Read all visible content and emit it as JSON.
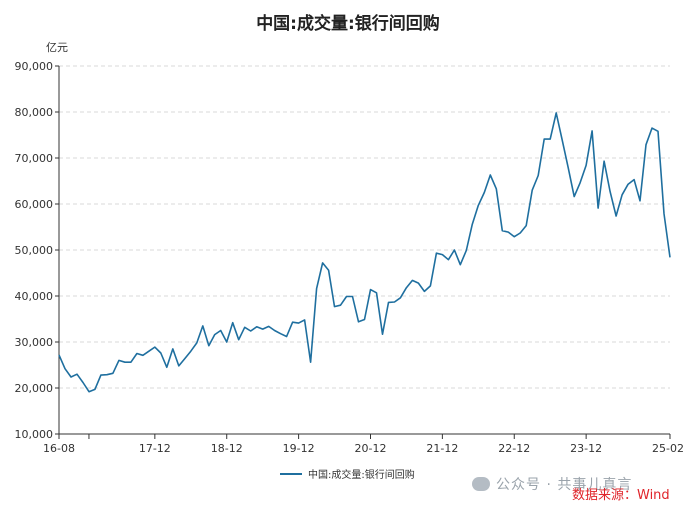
{
  "title": "中国:成交量:银行间回购",
  "watermark_text": "公众号 · 共事儿真言",
  "source_text": "数据来源：Wind",
  "icons": {
    "watermark": "wechat-icon"
  },
  "colors": {
    "series": "#1f6f9f",
    "grid": "#d9d9d9",
    "source_text": "#e0242a"
  },
  "chart_data": {
    "type": "line",
    "title": "中国:成交量:银行间回购",
    "ylabel": "亿元",
    "ylim": [
      10000,
      90000
    ],
    "yticks": [
      10000,
      20000,
      30000,
      40000,
      50000,
      60000,
      70000,
      80000,
      90000
    ],
    "ytick_labels": [
      "10,000",
      "20,000",
      "30,000",
      "40,000",
      "50,000",
      "60,000",
      "70,000",
      "80,000",
      "90,000"
    ],
    "xtick_labels": [
      "16-08",
      "17-12",
      "18-12",
      "19-12",
      "20-12",
      "21-12",
      "22-12",
      "23-12",
      "25-02"
    ],
    "xtick_dates": [
      "2016-08",
      "2017-12",
      "2018-12",
      "2019-12",
      "2020-12",
      "2021-12",
      "2022-12",
      "2023-12",
      "2025-02"
    ],
    "grid": "horizontal dashed",
    "legend_position": "bottom",
    "series": [
      {
        "name": "中国:成交量:银行间回购",
        "x": [
          "2016-08",
          "2016-09",
          "2016-10",
          "2016-11",
          "2016-12",
          "2017-01",
          "2017-02",
          "2017-03",
          "2017-04",
          "2017-05",
          "2017-06",
          "2017-07",
          "2017-08",
          "2017-09",
          "2017-10",
          "2017-11",
          "2017-12",
          "2018-01",
          "2018-02",
          "2018-03",
          "2018-04",
          "2018-05",
          "2018-06",
          "2018-07",
          "2018-08",
          "2018-09",
          "2018-10",
          "2018-11",
          "2018-12",
          "2019-01",
          "2019-02",
          "2019-03",
          "2019-04",
          "2019-05",
          "2019-06",
          "2019-07",
          "2019-08",
          "2019-09",
          "2019-10",
          "2019-11",
          "2019-12",
          "2020-01",
          "2020-02",
          "2020-03",
          "2020-04",
          "2020-05",
          "2020-06",
          "2020-07",
          "2020-08",
          "2020-09",
          "2020-10",
          "2020-11",
          "2020-12",
          "2021-01",
          "2021-02",
          "2021-03",
          "2021-04",
          "2021-05",
          "2021-06",
          "2021-07",
          "2021-08",
          "2021-09",
          "2021-10",
          "2021-11",
          "2021-12",
          "2022-01",
          "2022-02",
          "2022-03",
          "2022-04",
          "2022-05",
          "2022-06",
          "2022-07",
          "2022-08",
          "2022-09",
          "2022-10",
          "2022-11",
          "2022-12",
          "2023-01",
          "2023-02",
          "2023-03",
          "2023-04",
          "2023-05",
          "2023-06",
          "2023-07",
          "2023-08",
          "2023-09",
          "2023-10",
          "2023-11",
          "2023-12",
          "2024-01",
          "2024-02",
          "2024-03",
          "2024-04",
          "2024-05",
          "2024-06",
          "2024-07",
          "2024-08",
          "2024-09",
          "2024-10",
          "2024-11",
          "2024-12",
          "2025-01",
          "2025-02"
        ],
        "values": [
          27200,
          24200,
          22400,
          23000,
          21200,
          19200,
          19700,
          22800,
          22900,
          23200,
          26000,
          25600,
          25600,
          27500,
          27100,
          28000,
          28900,
          27600,
          24500,
          28500,
          24800,
          26400,
          28000,
          29800,
          33500,
          29200,
          31600,
          32500,
          30000,
          34200,
          30500,
          33200,
          32400,
          33300,
          32800,
          33400,
          32500,
          31800,
          31200,
          34300,
          34100,
          34800,
          25600,
          41600,
          47200,
          45600,
          37700,
          38000,
          39900,
          39900,
          34400,
          34900,
          41400,
          40700,
          31700,
          38600,
          38700,
          39600,
          41800,
          43400,
          42800,
          41000,
          42200,
          49300,
          49000,
          47900,
          50000,
          46800,
          49900,
          55600,
          59700,
          62500,
          66300,
          63300,
          54200,
          53900,
          52900,
          53700,
          55300,
          63000,
          66200,
          74100,
          74100,
          79800,
          73900,
          67900,
          61600,
          64600,
          68400,
          75900,
          59100,
          69300,
          62700,
          57400,
          62000,
          64300,
          65300,
          60700,
          72900,
          76500,
          75800,
          57900,
          48400
        ]
      }
    ]
  }
}
